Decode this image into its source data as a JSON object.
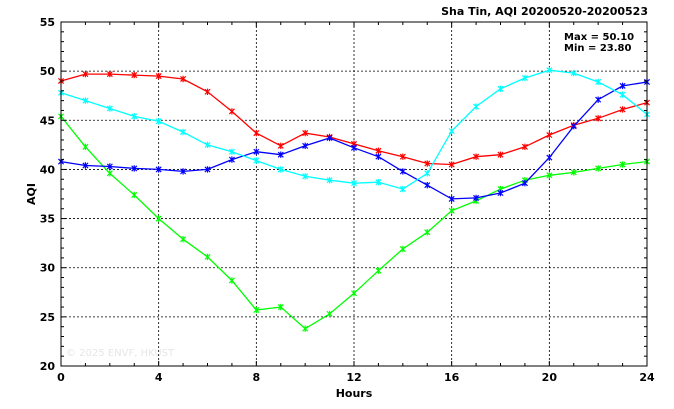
{
  "chart_data": {
    "type": "line",
    "title": "Sha Tin, AQI 20200520-20200523",
    "xlabel": "Hours",
    "ylabel": "AQI",
    "xlim": [
      0,
      24
    ],
    "ylim": [
      20,
      55
    ],
    "xticks": [
      0,
      4,
      8,
      12,
      16,
      20,
      24
    ],
    "yticks": [
      20,
      25,
      30,
      35,
      40,
      45,
      50,
      55
    ],
    "grid": true,
    "stats": {
      "max": "Max = 50.10",
      "min": "Min = 23.80"
    },
    "watermark": "© 2025 ENVF, HKUST",
    "x": [
      0,
      1,
      2,
      3,
      4,
      5,
      6,
      7,
      8,
      9,
      10,
      11,
      12,
      13,
      14,
      15,
      16,
      17,
      18,
      19,
      20,
      21,
      22,
      23,
      24
    ],
    "series": [
      {
        "color": "#ff0000",
        "values": [
          49.0,
          49.7,
          49.7,
          49.6,
          49.5,
          49.2,
          47.9,
          45.9,
          43.7,
          42.4,
          43.7,
          43.3,
          42.6,
          41.9,
          41.3,
          40.6,
          40.5,
          41.3,
          41.5,
          42.3,
          43.5,
          44.5,
          45.2,
          46.1,
          46.8
        ]
      },
      {
        "color": "#00ff00",
        "values": [
          45.4,
          42.3,
          39.6,
          37.4,
          35.0,
          32.9,
          31.1,
          28.7,
          25.7,
          26.0,
          23.8,
          25.3,
          27.4,
          29.7,
          31.9,
          33.6,
          35.8,
          36.8,
          38.0,
          38.9,
          39.4,
          39.7,
          40.1,
          40.5,
          40.8
        ]
      },
      {
        "color": "#0000ff",
        "values": [
          40.8,
          40.4,
          40.3,
          40.1,
          40.0,
          39.8,
          40.0,
          41.0,
          41.8,
          41.5,
          42.4,
          43.2,
          42.2,
          41.3,
          39.8,
          38.4,
          37.0,
          37.1,
          37.6,
          38.6,
          41.2,
          44.4,
          47.1,
          48.5,
          48.9
        ]
      },
      {
        "color": "#00ffff",
        "values": [
          47.8,
          47.0,
          46.2,
          45.4,
          44.9,
          43.8,
          42.5,
          41.8,
          40.9,
          40.0,
          39.3,
          38.9,
          38.6,
          38.7,
          38.0,
          39.6,
          43.9,
          46.4,
          48.2,
          49.3,
          50.1,
          49.8,
          48.9,
          47.6,
          45.6
        ]
      }
    ]
  }
}
